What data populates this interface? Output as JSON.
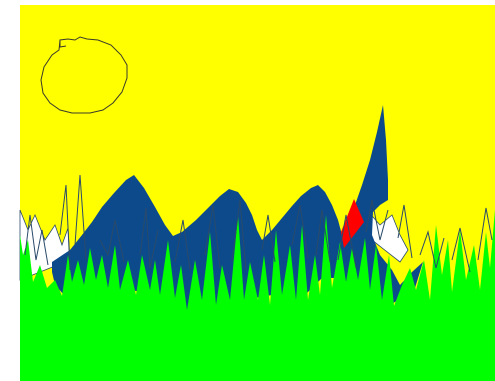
{
  "colors": {
    "page_background": "#ffffff",
    "sky": "#ffff00",
    "grass": "#00ff00",
    "mountains": "#0d4a8c",
    "mountain_accent": "#ff0000",
    "snow": "#ffffff",
    "outline": "#2a4a6a",
    "sun_outline": "#3a3a2a"
  },
  "scene": {
    "elements": [
      "sun",
      "mountain-range",
      "red-triangle",
      "grass-field",
      "grass-blades",
      "snow-patches"
    ]
  }
}
